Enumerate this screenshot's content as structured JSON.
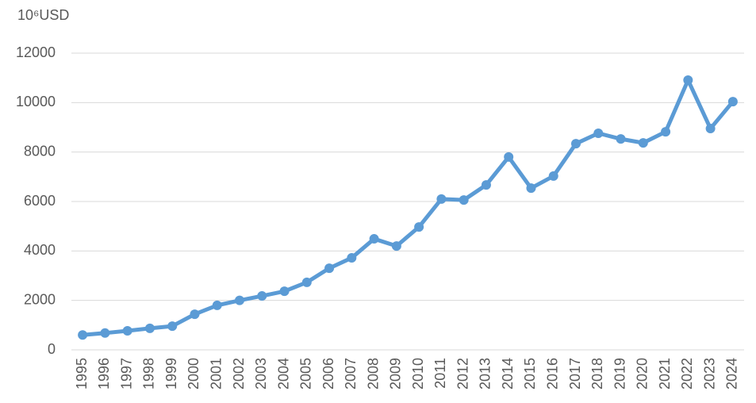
{
  "chart_data": {
    "type": "line",
    "y_axis_label": "10⁶USD",
    "categories": [
      "1995",
      "1996",
      "1997",
      "1998",
      "1999",
      "2000",
      "2001",
      "2002",
      "2003",
      "2004",
      "2005",
      "2006",
      "2007",
      "2008",
      "2009",
      "2010",
      "2011",
      "2012",
      "2013",
      "2014",
      "2015",
      "2016",
      "2017",
      "2018",
      "2019",
      "2020",
      "2021",
      "2022",
      "2023",
      "2024"
    ],
    "series": [
      {
        "color": "#5b9bd5",
        "values": [
          600,
          680,
          770,
          870,
          960,
          1440,
          1800,
          2000,
          2180,
          2370,
          2730,
          3300,
          3720,
          4490,
          4200,
          4970,
          6100,
          6060,
          6670,
          7800,
          6540,
          7030,
          8340,
          8760,
          8530,
          8370,
          8820,
          10910,
          8950,
          10040
        ]
      }
    ],
    "ylim": [
      0,
      12000
    ],
    "yticks": [
      0,
      2000,
      4000,
      6000,
      8000,
      10000,
      12000
    ],
    "grid": true
  }
}
